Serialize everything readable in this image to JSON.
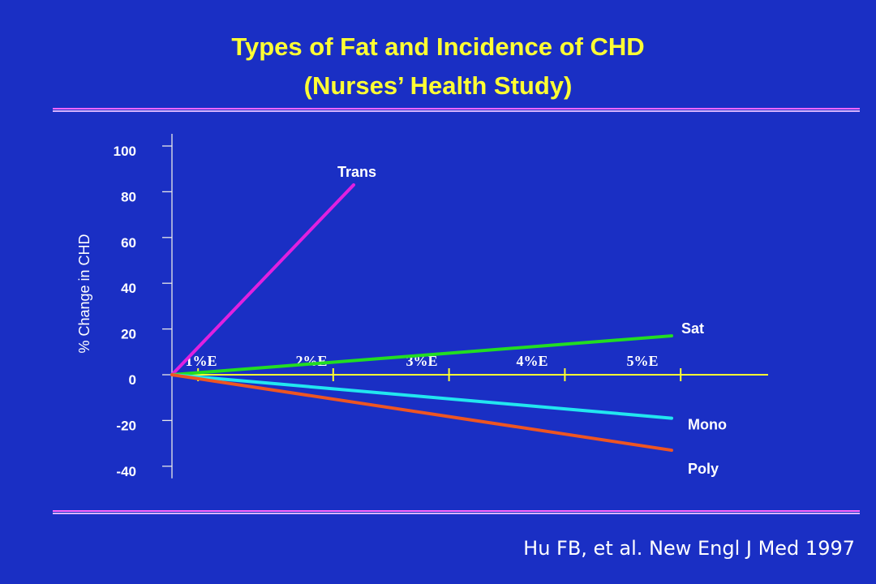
{
  "title": "Types of Fat and Incidence of CHD",
  "subtitle": "(Nurses’ Health Study)",
  "citation": "Hu FB, et al. New Engl J Med 1997",
  "colors": {
    "background": "#1a2fc4",
    "title": "#ffff33",
    "axis": "#ffff33",
    "trans": "#e020e0",
    "sat": "#22dd22",
    "mono": "#22e6f0",
    "poly": "#ee5522"
  },
  "chart_data": {
    "type": "line",
    "ylabel": "% Change in CHD",
    "xlabel": "",
    "x": [
      0,
      1,
      2,
      3,
      4,
      5
    ],
    "x_tick_labels": [
      "1%E",
      "2%E",
      "3%E",
      "4%E",
      "5%E"
    ],
    "xlim": [
      0,
      5.25
    ],
    "ylim": [
      -40,
      100
    ],
    "y_ticks": [
      100,
      80,
      60,
      40,
      20,
      0,
      -20,
      -40
    ],
    "grid": false,
    "series": [
      {
        "name": "Trans",
        "x": [
          0,
          1.6
        ],
        "values": [
          0,
          83
        ]
      },
      {
        "name": "Sat",
        "x": [
          0,
          4.4
        ],
        "values": [
          0,
          17
        ]
      },
      {
        "name": "Mono",
        "x": [
          0,
          4.4
        ],
        "values": [
          0,
          -19
        ]
      },
      {
        "name": "Poly",
        "x": [
          0,
          4.4
        ],
        "values": [
          0,
          -33
        ]
      }
    ]
  }
}
